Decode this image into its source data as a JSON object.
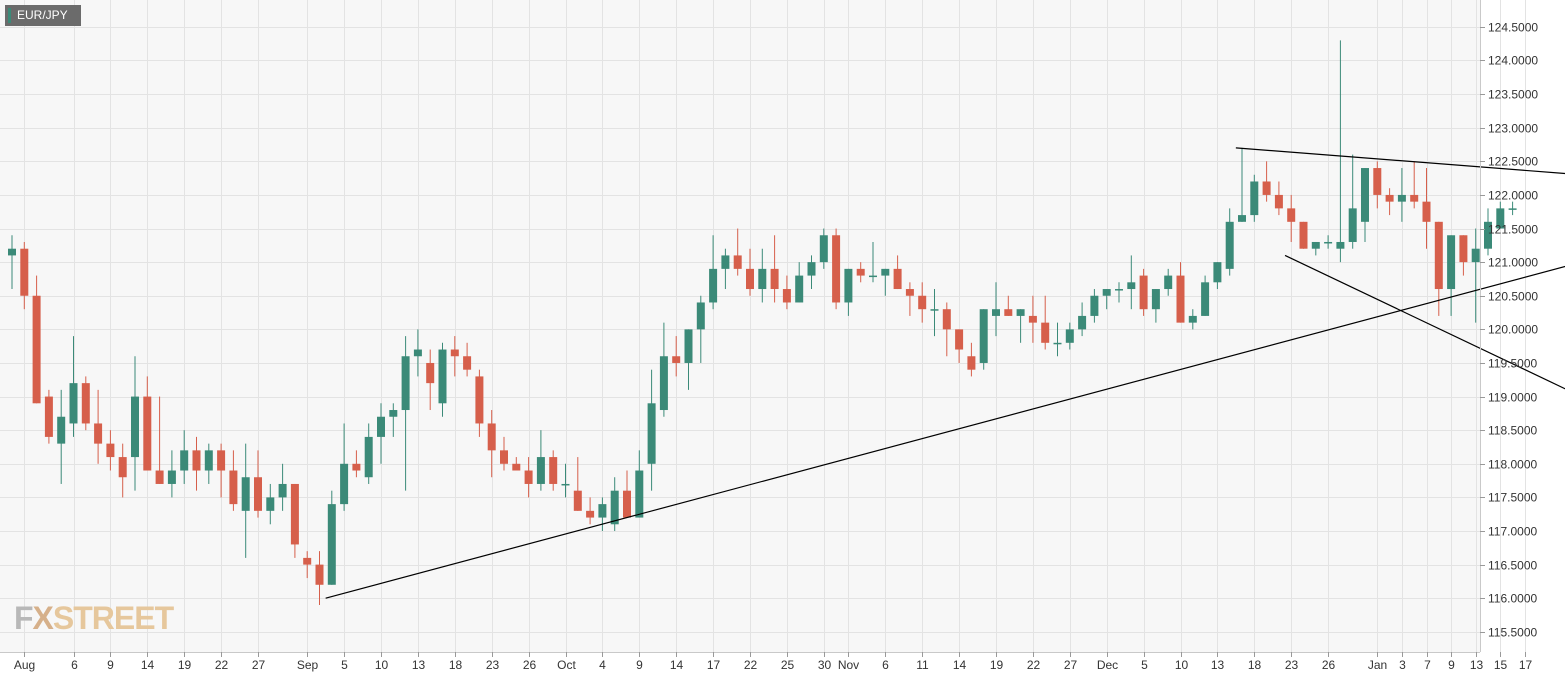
{
  "symbol_label": "EUR/JPY",
  "watermark": {
    "fx": "F",
    "x": "X",
    "street": "STREET"
  },
  "colors": {
    "bullish": "#3b8a78",
    "bearish": "#d65f4b",
    "grid": "#e3e3e3",
    "plot_bg": "#f7f7f7",
    "axis_text": "#333333",
    "trendline": "#000000"
  },
  "chart_data": {
    "type": "candlestick",
    "title": "",
    "xlabel": "",
    "ylabel": "",
    "ylim": [
      115.2,
      124.9
    ],
    "grid": true,
    "y_ticks": [
      "115.5000",
      "116.0000",
      "116.5000",
      "117.0000",
      "117.5000",
      "118.0000",
      "118.5000",
      "119.0000",
      "119.5000",
      "120.0000",
      "120.5000",
      "121.0000",
      "121.5000",
      "122.0000",
      "122.5000",
      "123.0000",
      "123.5000",
      "124.0000",
      "124.5000"
    ],
    "x_ticks": [
      {
        "label": "Aug",
        "i": 1
      },
      {
        "label": "6",
        "i": 5
      },
      {
        "label": "9",
        "i": 8
      },
      {
        "label": "14",
        "i": 11
      },
      {
        "label": "19",
        "i": 14
      },
      {
        "label": "22",
        "i": 17
      },
      {
        "label": "27",
        "i": 20
      },
      {
        "label": "Sep",
        "i": 24
      },
      {
        "label": "5",
        "i": 27
      },
      {
        "label": "10",
        "i": 30
      },
      {
        "label": "13",
        "i": 33
      },
      {
        "label": "18",
        "i": 36
      },
      {
        "label": "23",
        "i": 39
      },
      {
        "label": "26",
        "i": 42
      },
      {
        "label": "Oct",
        "i": 45
      },
      {
        "label": "4",
        "i": 48
      },
      {
        "label": "9",
        "i": 51
      },
      {
        "label": "14",
        "i": 54
      },
      {
        "label": "17",
        "i": 57
      },
      {
        "label": "22",
        "i": 60
      },
      {
        "label": "25",
        "i": 63
      },
      {
        "label": "30",
        "i": 66
      },
      {
        "label": "Nov",
        "i": 68
      },
      {
        "label": "6",
        "i": 71
      },
      {
        "label": "11",
        "i": 74
      },
      {
        "label": "14",
        "i": 77
      },
      {
        "label": "19",
        "i": 80
      },
      {
        "label": "22",
        "i": 83
      },
      {
        "label": "27",
        "i": 86
      },
      {
        "label": "Dec",
        "i": 89
      },
      {
        "label": "5",
        "i": 92
      },
      {
        "label": "10",
        "i": 95
      },
      {
        "label": "13",
        "i": 98
      },
      {
        "label": "18",
        "i": 101
      },
      {
        "label": "23",
        "i": 104
      },
      {
        "label": "26",
        "i": 107
      },
      {
        "label": "Jan",
        "i": 111
      },
      {
        "label": "3",
        "i": 113
      },
      {
        "label": "7",
        "i": 115
      },
      {
        "label": "9",
        "i": 117
      },
      {
        "label": "13",
        "i": 119
      },
      {
        "label": "15",
        "i": 121
      },
      {
        "label": "17",
        "i": 123
      }
    ],
    "ohlc": [
      [
        121.1,
        121.4,
        120.6,
        121.2
      ],
      [
        121.2,
        121.3,
        120.3,
        120.5
      ],
      [
        120.5,
        120.8,
        118.9,
        118.9
      ],
      [
        119.0,
        119.1,
        118.3,
        118.4
      ],
      [
        118.3,
        119.1,
        117.7,
        118.7
      ],
      [
        118.6,
        119.9,
        118.4,
        119.2
      ],
      [
        119.2,
        119.3,
        118.5,
        118.6
      ],
      [
        118.6,
        119.1,
        118.0,
        118.3
      ],
      [
        118.3,
        118.5,
        117.9,
        118.1
      ],
      [
        118.1,
        118.3,
        117.5,
        117.8
      ],
      [
        118.1,
        119.6,
        117.6,
        119.0
      ],
      [
        119.0,
        119.3,
        117.9,
        117.9
      ],
      [
        117.9,
        119.0,
        117.7,
        117.7
      ],
      [
        117.7,
        118.2,
        117.5,
        117.9
      ],
      [
        117.9,
        118.5,
        117.7,
        118.2
      ],
      [
        118.2,
        118.4,
        117.6,
        117.9
      ],
      [
        117.9,
        118.3,
        117.7,
        118.2
      ],
      [
        118.2,
        118.3,
        117.5,
        117.9
      ],
      [
        117.9,
        118.2,
        117.3,
        117.4
      ],
      [
        117.3,
        118.3,
        116.6,
        117.8
      ],
      [
        117.8,
        118.2,
        117.2,
        117.3
      ],
      [
        117.3,
        117.7,
        117.1,
        117.5
      ],
      [
        117.5,
        118.0,
        117.3,
        117.7
      ],
      [
        117.7,
        117.7,
        116.6,
        116.8
      ],
      [
        116.6,
        116.7,
        116.3,
        116.5
      ],
      [
        116.5,
        116.7,
        115.9,
        116.2
      ],
      [
        116.2,
        117.6,
        116.2,
        117.4
      ],
      [
        117.4,
        118.6,
        117.3,
        118.0
      ],
      [
        118.0,
        118.2,
        117.8,
        117.9
      ],
      [
        117.8,
        118.6,
        117.7,
        118.4
      ],
      [
        118.4,
        118.9,
        118.0,
        118.7
      ],
      [
        118.7,
        118.9,
        118.4,
        118.8
      ],
      [
        118.8,
        119.9,
        117.6,
        119.6
      ],
      [
        119.6,
        120.0,
        119.3,
        119.7
      ],
      [
        119.5,
        119.7,
        118.8,
        119.2
      ],
      [
        118.9,
        119.8,
        118.7,
        119.7
      ],
      [
        119.7,
        119.9,
        119.3,
        119.6
      ],
      [
        119.6,
        119.8,
        119.3,
        119.4
      ],
      [
        119.3,
        119.4,
        118.4,
        118.6
      ],
      [
        118.6,
        118.8,
        117.8,
        118.2
      ],
      [
        118.2,
        118.4,
        117.9,
        118.0
      ],
      [
        118.0,
        118.1,
        117.9,
        117.9
      ],
      [
        117.9,
        118.1,
        117.5,
        117.7
      ],
      [
        117.7,
        118.5,
        117.6,
        118.1
      ],
      [
        118.1,
        118.2,
        117.6,
        117.7
      ],
      [
        117.7,
        118.0,
        117.5,
        117.7
      ],
      [
        117.6,
        118.1,
        117.3,
        117.3
      ],
      [
        117.3,
        117.5,
        117.1,
        117.2
      ],
      [
        117.2,
        117.5,
        117.0,
        117.4
      ],
      [
        117.1,
        117.8,
        117.0,
        117.6
      ],
      [
        117.6,
        117.9,
        117.2,
        117.2
      ],
      [
        117.2,
        118.2,
        117.2,
        117.9
      ],
      [
        118.0,
        119.4,
        117.6,
        118.9
      ],
      [
        118.8,
        120.1,
        118.7,
        119.6
      ],
      [
        119.6,
        119.9,
        119.3,
        119.5
      ],
      [
        119.5,
        120.0,
        119.1,
        120.0
      ],
      [
        120.0,
        120.5,
        119.5,
        120.4
      ],
      [
        120.4,
        121.4,
        120.3,
        120.9
      ],
      [
        120.9,
        121.2,
        120.6,
        121.1
      ],
      [
        121.1,
        121.5,
        120.8,
        120.9
      ],
      [
        120.9,
        121.2,
        120.5,
        120.6
      ],
      [
        120.6,
        121.2,
        120.4,
        120.9
      ],
      [
        120.9,
        121.4,
        120.4,
        120.6
      ],
      [
        120.6,
        120.8,
        120.3,
        120.4
      ],
      [
        120.4,
        121.0,
        120.4,
        120.8
      ],
      [
        120.8,
        121.1,
        120.6,
        121.0
      ],
      [
        121.0,
        121.5,
        120.9,
        121.4
      ],
      [
        121.4,
        121.5,
        120.3,
        120.4
      ],
      [
        120.4,
        120.9,
        120.2,
        120.9
      ],
      [
        120.9,
        121.0,
        120.7,
        120.8
      ],
      [
        120.8,
        121.3,
        120.7,
        120.8
      ],
      [
        120.8,
        120.9,
        120.5,
        120.9
      ],
      [
        120.9,
        121.1,
        120.6,
        120.6
      ],
      [
        120.6,
        120.7,
        120.2,
        120.5
      ],
      [
        120.5,
        120.7,
        120.1,
        120.3
      ],
      [
        120.3,
        120.6,
        119.9,
        120.3
      ],
      [
        120.3,
        120.4,
        119.6,
        120.0
      ],
      [
        120.0,
        120.0,
        119.5,
        119.7
      ],
      [
        119.6,
        119.8,
        119.3,
        119.4
      ],
      [
        119.5,
        120.3,
        119.4,
        120.3
      ],
      [
        120.2,
        120.7,
        119.9,
        120.3
      ],
      [
        120.3,
        120.5,
        120.2,
        120.2
      ],
      [
        120.2,
        120.3,
        119.8,
        120.3
      ],
      [
        120.2,
        120.5,
        119.8,
        120.1
      ],
      [
        120.1,
        120.5,
        119.7,
        119.8
      ],
      [
        119.8,
        120.1,
        119.6,
        119.8
      ],
      [
        119.8,
        120.1,
        119.7,
        120.0
      ],
      [
        120.0,
        120.4,
        119.9,
        120.2
      ],
      [
        120.2,
        120.6,
        120.1,
        120.5
      ],
      [
        120.5,
        120.6,
        120.3,
        120.6
      ],
      [
        120.6,
        120.7,
        120.4,
        120.6
      ],
      [
        120.6,
        121.1,
        120.3,
        120.7
      ],
      [
        120.8,
        120.9,
        120.2,
        120.3
      ],
      [
        120.3,
        120.6,
        120.1,
        120.6
      ],
      [
        120.6,
        120.9,
        120.5,
        120.8
      ],
      [
        120.8,
        121.0,
        120.1,
        120.1
      ],
      [
        120.1,
        120.3,
        120.0,
        120.2
      ],
      [
        120.2,
        120.8,
        120.2,
        120.7
      ],
      [
        120.7,
        121.0,
        120.6,
        121.0
      ],
      [
        120.9,
        121.8,
        120.8,
        121.6
      ],
      [
        121.6,
        122.7,
        121.6,
        121.7
      ],
      [
        121.7,
        122.3,
        121.6,
        122.2
      ],
      [
        122.2,
        122.5,
        121.9,
        122.0
      ],
      [
        122.0,
        122.2,
        121.7,
        121.8
      ],
      [
        121.8,
        122.0,
        121.3,
        121.6
      ],
      [
        121.6,
        121.6,
        121.2,
        121.2
      ],
      [
        121.2,
        121.3,
        121.1,
        121.3
      ],
      [
        121.3,
        121.4,
        121.2,
        121.3
      ],
      [
        121.2,
        124.3,
        121.0,
        121.3
      ],
      [
        121.3,
        122.6,
        121.2,
        121.8
      ],
      [
        121.6,
        122.4,
        121.3,
        122.4
      ],
      [
        122.4,
        122.5,
        121.8,
        122.0
      ],
      [
        122.0,
        122.1,
        121.7,
        121.9
      ],
      [
        121.9,
        122.4,
        121.6,
        122.0
      ],
      [
        122.0,
        122.5,
        121.8,
        121.9
      ],
      [
        121.9,
        122.4,
        121.2,
        121.6
      ],
      [
        121.6,
        121.6,
        120.2,
        120.6
      ],
      [
        120.6,
        121.4,
        120.2,
        121.4
      ],
      [
        121.4,
        121.4,
        120.8,
        121.0
      ],
      [
        121.0,
        121.5,
        120.1,
        121.2
      ],
      [
        121.2,
        121.8,
        121.1,
        121.6
      ],
      [
        121.5,
        121.9,
        121.5,
        121.8
      ],
      [
        121.8,
        121.9,
        121.7,
        121.8
      ]
    ],
    "trendlines": [
      {
        "i1": 25.5,
        "p1": 116.0,
        "i2": 127.6,
        "p2": 121.0
      },
      {
        "i1": 99.5,
        "p1": 122.7,
        "i2": 127.6,
        "p2": 122.3
      },
      {
        "i1": 103.5,
        "p1": 121.1,
        "i2": 127.6,
        "p2": 119.0
      }
    ]
  }
}
